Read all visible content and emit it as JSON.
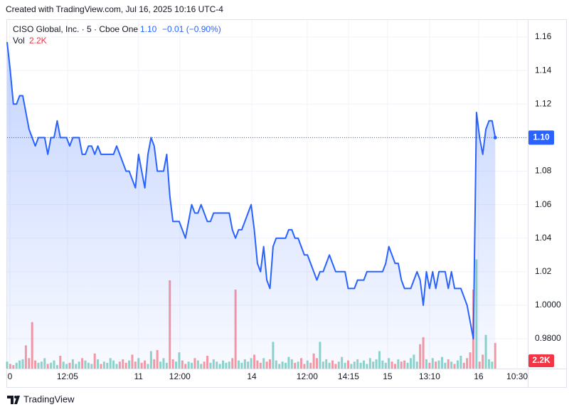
{
  "header": {
    "created": "Created with TradingView.com, Jul 16, 2025 10:16 UTC-4"
  },
  "footer": {
    "brand": "TradingView"
  },
  "chart_data": {
    "type": "area",
    "legend": {
      "symbol": "CISO Global, Inc. · 5 · Cboe One",
      "last": "1.10",
      "change": "−0.01 (−0.90%)",
      "volume_title": "Vol",
      "volume_last": "2.2K"
    },
    "series": [
      {
        "name": "CISO Global, Inc.",
        "color": "#2962ff",
        "values": [
          1.157,
          1.14,
          1.12,
          1.12,
          1.125,
          1.125,
          1.115,
          1.105,
          1.1,
          1.095,
          1.1,
          1.1,
          1.1,
          1.09,
          1.1,
          1.1,
          1.11,
          1.1,
          1.1,
          1.1,
          1.095,
          1.1,
          1.1,
          1.1,
          1.09,
          1.09,
          1.095,
          1.095,
          1.09,
          1.095,
          1.09,
          1.09,
          1.09,
          1.09,
          1.09,
          1.095,
          1.09,
          1.085,
          1.08,
          1.08,
          1.075,
          1.07,
          1.09,
          1.08,
          1.07,
          1.09,
          1.1,
          1.095,
          1.08,
          1.08,
          1.08,
          1.09,
          1.065,
          1.05,
          1.05,
          1.05,
          1.045,
          1.04,
          1.05,
          1.06,
          1.055,
          1.055,
          1.06,
          1.055,
          1.05,
          1.05,
          1.055,
          1.055,
          1.055,
          1.055,
          1.055,
          1.055,
          1.045,
          1.04,
          1.045,
          1.045,
          1.05,
          1.055,
          1.06,
          1.045,
          1.025,
          1.02,
          1.035,
          1.015,
          1.01,
          1.035,
          1.04,
          1.04,
          1.04,
          1.04,
          1.045,
          1.045,
          1.04,
          1.04,
          1.035,
          1.03,
          1.03,
          1.025,
          1.02,
          1.015,
          1.02,
          1.02,
          1.025,
          1.03,
          1.025,
          1.02,
          1.02,
          1.02,
          1.02,
          1.01,
          1.01,
          1.01,
          1.015,
          1.015,
          1.015,
          1.02,
          1.02,
          1.02,
          1.02,
          1.02,
          1.02,
          1.025,
          1.035,
          1.03,
          1.025,
          1.025,
          1.015,
          1.01,
          1.01,
          1.01,
          1.015,
          1.02,
          1.015,
          1.0,
          1.02,
          1.01,
          1.02,
          1.01,
          1.02,
          1.02,
          1.02,
          1.01,
          1.02,
          1.01,
          1.01,
          1.01,
          1.005,
          1.0,
          0.99,
          0.98,
          1.115,
          1.1,
          1.09,
          1.105,
          1.11,
          1.11,
          1.1
        ]
      }
    ],
    "volume": {
      "up_color": "#22ab94",
      "down_color": "#f23645",
      "ylim": [
        0,
        30000
      ],
      "values": [
        600,
        400,
        300,
        500,
        700,
        800,
        2000,
        900,
        4000,
        700,
        500,
        600,
        900,
        400,
        500,
        700,
        300,
        1100,
        600,
        400,
        500,
        800,
        400,
        600,
        900,
        700,
        500,
        400,
        1300,
        800,
        400,
        600,
        500,
        900,
        700,
        400,
        600,
        800,
        500,
        700,
        1200,
        600,
        900,
        500,
        700,
        400,
        1500,
        800,
        1600,
        600,
        900,
        500,
        7600,
        800,
        600,
        1400,
        700,
        400,
        600,
        500,
        900,
        700,
        400,
        600,
        1100,
        500,
        800,
        600,
        400,
        700,
        500,
        600,
        900,
        6800,
        700,
        500,
        800,
        600,
        900,
        1200,
        700,
        500,
        900,
        600,
        800,
        2300,
        700,
        400,
        600,
        500,
        1000,
        800,
        500,
        600,
        900,
        400,
        700,
        500,
        1300,
        900,
        2300,
        600,
        800,
        500,
        700,
        400,
        600,
        1000,
        500,
        700,
        400,
        600,
        800,
        500,
        700,
        400,
        900,
        600,
        800,
        1500,
        700,
        500,
        900,
        600,
        400,
        800,
        600,
        700,
        500,
        900,
        1200,
        600,
        2100,
        2700,
        800,
        500,
        900,
        600,
        700,
        1000,
        500,
        800,
        600,
        400,
        700,
        1100,
        500,
        900,
        1400,
        6800,
        9400,
        600,
        1200,
        2900,
        800,
        600,
        2200
      ]
    },
    "xlim": [
      0,
      166.4
    ],
    "xticks": [
      {
        "value": 0.9,
        "label": "0"
      },
      {
        "value": 19.3,
        "label": "12:05"
      },
      {
        "value": 42,
        "label": "11"
      },
      {
        "value": 55.2,
        "label": "12:00"
      },
      {
        "value": 78.2,
        "label": "14"
      },
      {
        "value": 95.9,
        "label": "12:00"
      },
      {
        "value": 109.1,
        "label": "14:15"
      },
      {
        "value": 121.6,
        "label": "15"
      },
      {
        "value": 135,
        "label": "13:10"
      },
      {
        "value": 150.7,
        "label": "16"
      },
      {
        "value": 163,
        "label": "10:30"
      }
    ],
    "ylim": [
      0.9622,
      1.1702
    ],
    "yticks": [
      1.16,
      1.14,
      1.12,
      {
        "value": 1.1,
        "label": "1.10"
      },
      1.08,
      1.06,
      1.04,
      1.02,
      {
        "value": 1.0,
        "label": "1.0000"
      },
      {
        "value": 0.98,
        "label": "0.9800"
      }
    ],
    "grid": true
  }
}
